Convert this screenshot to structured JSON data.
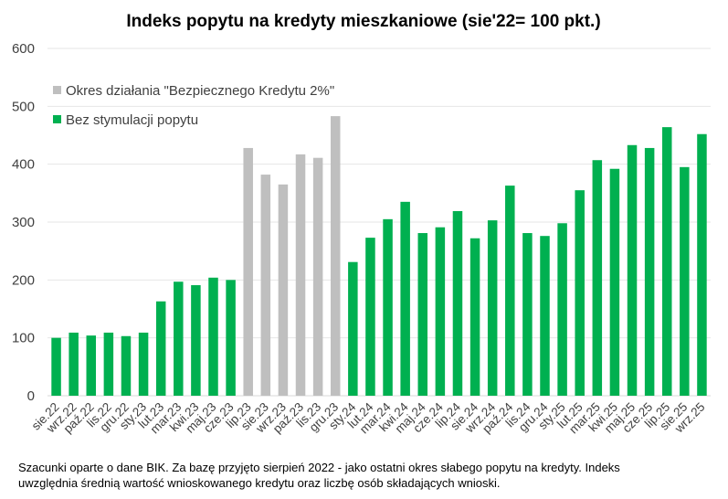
{
  "chart_data": {
    "type": "bar",
    "title": "Indeks popytu na kredyty mieszkaniowe (sie'22= 100 pkt.)",
    "xlabel": "",
    "ylabel": "",
    "ylim": [
      0,
      600
    ],
    "yticks": [
      "0",
      "100",
      "200",
      "300",
      "400",
      "500",
      "600"
    ],
    "grid": true,
    "legend_position": "top-left",
    "categories": [
      "sie.22",
      "wrz.22",
      "paź.22",
      "lis.22",
      "gru.22",
      "sty.23",
      "lut.23",
      "mar.23",
      "kwi.23",
      "maj.23",
      "cze.23",
      "lip.23",
      "sie.23",
      "wrz.23",
      "paź.23",
      "lis.23",
      "gru.23",
      "sty.24",
      "lut.24",
      "mar.24",
      "kwi.24",
      "maj.24",
      "cze.24",
      "lip.24",
      "sie.24",
      "wrz.24",
      "paź.24",
      "lis.24",
      "gru.24",
      "sty.25",
      "lut.25",
      "mar.25",
      "kwi.25",
      "maj.25",
      "cze.25",
      "lip.25",
      "sie.25",
      "wrz.25"
    ],
    "values": [
      100,
      109,
      104,
      109,
      103,
      109,
      163,
      197,
      191,
      204,
      200,
      428,
      382,
      365,
      417,
      411,
      483,
      231,
      273,
      305,
      335,
      281,
      291,
      319,
      272,
      303,
      363,
      281,
      276,
      298,
      355,
      407,
      392,
      433,
      428,
      464,
      395,
      452
    ],
    "series_of_point": [
      1,
      1,
      1,
      1,
      1,
      1,
      1,
      1,
      1,
      1,
      1,
      0,
      0,
      0,
      0,
      0,
      0,
      1,
      1,
      1,
      1,
      1,
      1,
      1,
      1,
      1,
      1,
      1,
      1,
      1,
      1,
      1,
      1,
      1,
      1,
      1,
      1,
      1
    ],
    "series": [
      {
        "name": "Okres działania \"Bezpiecznego Kredytu 2%\"",
        "color": "#bfbfbf"
      },
      {
        "name": "Bez stymulacji popytu",
        "color": "#00b050"
      }
    ]
  },
  "footnote": {
    "line1": "Szacunki oparte o dane BIK. Za bazę przyjęto sierpień 2022 - jako ostatni okres słabego popytu na kredyty. Indeks",
    "line2": "uwzględnia średnią wartość wnioskowanego kredytu oraz liczbę osób składających wnioski."
  }
}
